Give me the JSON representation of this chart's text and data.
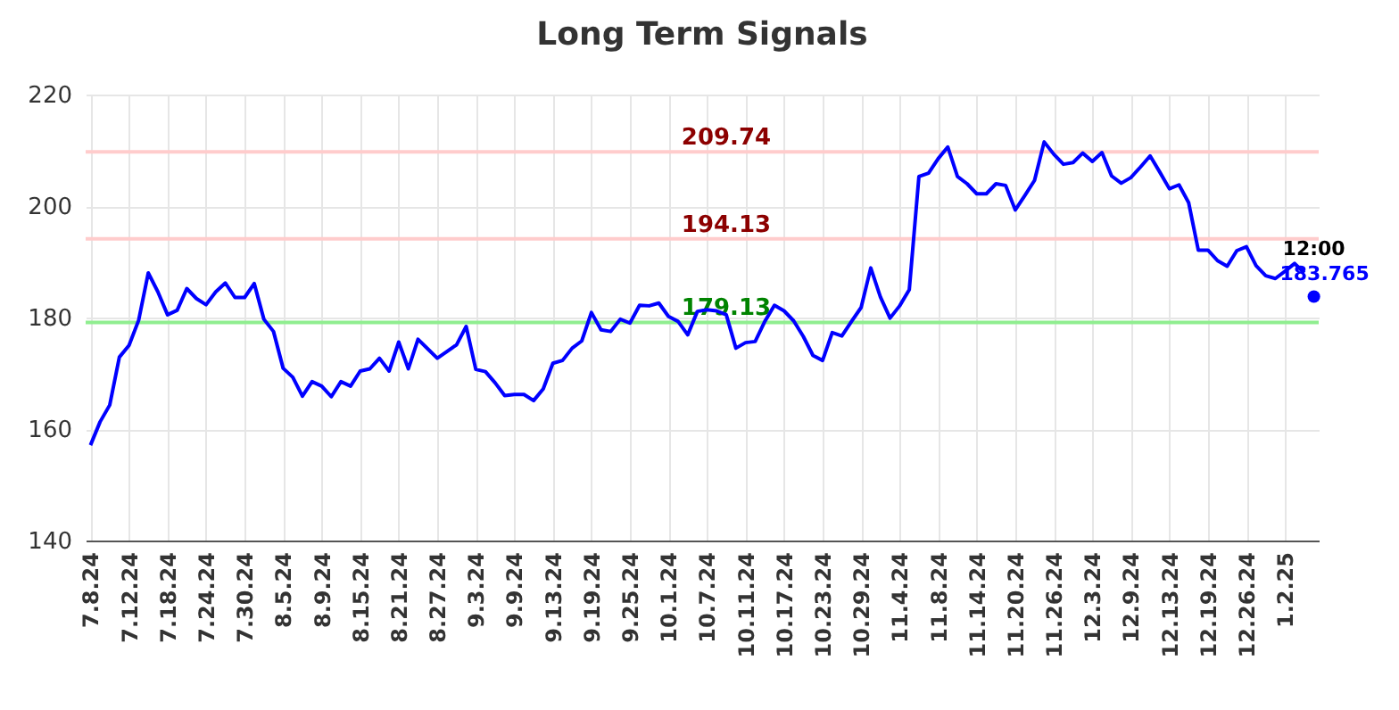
{
  "chart_data": {
    "type": "line",
    "title": "Long Term Signals",
    "categories": [
      "7.8.24",
      null,
      null,
      null,
      "7.12.24",
      null,
      null,
      null,
      "7.18.24",
      null,
      null,
      null,
      "7.24.24",
      null,
      null,
      null,
      "7.30.24",
      null,
      null,
      null,
      "8.5.24",
      null,
      null,
      null,
      "8.9.24",
      null,
      null,
      null,
      "8.15.24",
      null,
      null,
      null,
      "8.21.24",
      null,
      null,
      null,
      "8.27.24",
      null,
      null,
      null,
      "9.3.24",
      null,
      null,
      null,
      "9.9.24",
      null,
      null,
      null,
      "9.13.24",
      null,
      null,
      null,
      "9.19.24",
      null,
      null,
      null,
      "9.25.24",
      null,
      null,
      null,
      "10.1.24",
      null,
      null,
      null,
      "10.7.24",
      null,
      null,
      null,
      "10.11.24",
      null,
      null,
      null,
      "10.17.24",
      null,
      null,
      null,
      "10.23.24",
      null,
      null,
      null,
      "10.29.24",
      null,
      null,
      null,
      "11.4.24",
      null,
      null,
      null,
      "11.8.24",
      null,
      null,
      null,
      "11.14.24",
      null,
      null,
      null,
      "11.20.24",
      null,
      null,
      null,
      "11.26.24",
      null,
      null,
      null,
      "12.3.24",
      null,
      null,
      null,
      "12.9.24",
      null,
      null,
      null,
      "12.13.24",
      null,
      null,
      null,
      "12.19.24",
      null,
      null,
      null,
      "12.26.24",
      null,
      null,
      null,
      "1.2.25",
      null,
      null,
      null
    ],
    "series": [
      {
        "color": "#0000ff",
        "values": [
          157.1,
          161.3,
          164.3,
          172.9,
          175.0,
          179.5,
          188.0,
          184.6,
          180.5,
          181.3,
          185.2,
          183.4,
          182.3,
          184.6,
          186.2,
          183.6,
          183.6,
          186.1,
          179.7,
          177.5,
          170.9,
          169.3,
          165.9,
          168.5,
          167.7,
          165.8,
          168.5,
          167.7,
          170.4,
          170.8,
          172.7,
          170.4,
          175.6,
          170.8,
          176.1,
          174.4,
          172.7,
          173.9,
          175.1,
          178.4,
          170.7,
          170.3,
          168.3,
          166.0,
          166.2,
          166.2,
          165.1,
          167.2,
          171.8,
          172.3,
          174.5,
          175.8,
          180.9,
          177.8,
          177.5,
          179.7,
          179.0,
          182.2,
          182.1,
          182.6,
          180.2,
          179.3,
          176.9,
          181.1,
          181.4,
          181.2,
          180.5,
          174.5,
          175.5,
          175.7,
          179.3,
          182.2,
          181.2,
          179.4,
          176.6,
          173.2,
          172.3,
          177.3,
          176.7,
          179.3,
          181.8,
          188.9,
          183.7,
          179.9,
          182.1,
          185.0,
          205.3,
          205.9,
          208.5,
          210.6,
          205.3,
          204.0,
          202.2,
          202.2,
          204.0,
          203.7,
          199.3,
          201.9,
          204.6,
          211.5,
          209.3,
          207.5,
          207.8,
          209.5,
          208.0,
          209.6,
          205.4,
          204.1,
          205.1,
          207.0,
          209.0,
          206.1,
          203.1,
          203.8,
          200.6,
          192.1,
          192.1,
          190.2,
          189.2,
          192.0,
          192.7,
          189.3,
          187.5,
          187.0,
          188.3,
          189.7,
          188.0,
          null
        ]
      },
      {
        "type": "scatter",
        "color": "#0000ff",
        "values": [
          null,
          null,
          null,
          null,
          null,
          null,
          null,
          null,
          null,
          null,
          null,
          null,
          null,
          null,
          null,
          null,
          null,
          null,
          null,
          null,
          null,
          null,
          null,
          null,
          null,
          null,
          null,
          null,
          null,
          null,
          null,
          null,
          null,
          null,
          null,
          null,
          null,
          null,
          null,
          null,
          null,
          null,
          null,
          null,
          null,
          null,
          null,
          null,
          null,
          null,
          null,
          null,
          null,
          null,
          null,
          null,
          null,
          null,
          null,
          null,
          null,
          null,
          null,
          null,
          null,
          null,
          null,
          null,
          null,
          null,
          null,
          null,
          null,
          null,
          null,
          null,
          null,
          null,
          null,
          null,
          null,
          null,
          null,
          null,
          null,
          null,
          null,
          null,
          null,
          null,
          null,
          null,
          null,
          null,
          null,
          null,
          null,
          null,
          null,
          null,
          null,
          null,
          null,
          null,
          null,
          null,
          null,
          null,
          null,
          null,
          null,
          null,
          null,
          null,
          null,
          null,
          null,
          null,
          null,
          null,
          null,
          null,
          null,
          null,
          null,
          null,
          null,
          183.765
        ],
        "value_labels": [
          null,
          null,
          null,
          null,
          null,
          null,
          null,
          null,
          null,
          null,
          null,
          null,
          null,
          null,
          null,
          null,
          null,
          null,
          null,
          null,
          null,
          null,
          null,
          null,
          null,
          null,
          null,
          null,
          null,
          null,
          null,
          null,
          null,
          null,
          null,
          null,
          null,
          null,
          null,
          null,
          null,
          null,
          null,
          null,
          null,
          null,
          null,
          null,
          null,
          null,
          null,
          null,
          null,
          null,
          null,
          null,
          null,
          null,
          null,
          null,
          null,
          null,
          null,
          null,
          null,
          null,
          null,
          null,
          null,
          null,
          null,
          null,
          null,
          null,
          null,
          null,
          null,
          null,
          null,
          null,
          null,
          null,
          null,
          null,
          null,
          null,
          null,
          null,
          null,
          null,
          null,
          null,
          null,
          null,
          null,
          null,
          null,
          null,
          null,
          null,
          null,
          null,
          null,
          null,
          null,
          null,
          null,
          null,
          null,
          null,
          null,
          null,
          null,
          null,
          null,
          null,
          null,
          null,
          null,
          null,
          null,
          null,
          null,
          null,
          null,
          null,
          null,
          "183.765"
        ]
      }
    ],
    "annotations": [
      "12:00"
    ],
    "ref_lines": [
      {
        "axis": "y",
        "value": 209.74,
        "label": "209.74",
        "color": "#ffcccc"
      },
      {
        "axis": "y",
        "value": 194.13,
        "label": "194.13",
        "color": "#ffcccc"
      },
      {
        "axis": "y",
        "value": 179.13,
        "label": "179.13",
        "color": "#90ee90"
      }
    ],
    "ylim": [
      140,
      220
    ],
    "yticks": [
      140,
      160,
      180,
      200,
      220
    ],
    "grid": true
  }
}
